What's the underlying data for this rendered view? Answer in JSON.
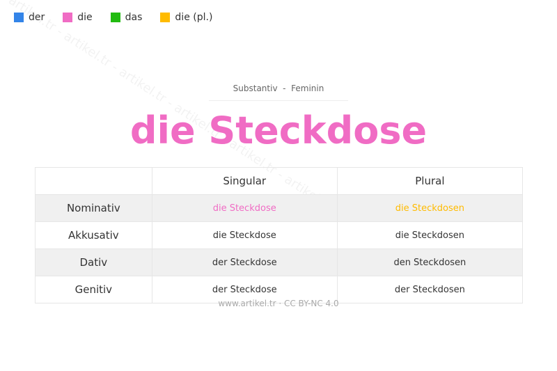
{
  "legend": [
    {
      "label": "der",
      "color": "#3384e8"
    },
    {
      "label": "die",
      "color": "#f06cc4"
    },
    {
      "label": "das",
      "color": "#22bb11"
    },
    {
      "label": "die (pl.)",
      "color": "#ffbb00"
    }
  ],
  "watermark": "artikel.tr - artikel.tr - artikel.tr - artikel.tr - artikel.tr - artikel.tr",
  "subtitle": "Substantiv  -  Feminin",
  "title": "die Steckdose",
  "title_color": "#f06cc4",
  "table": {
    "headers": [
      "",
      "Singular",
      "Plural"
    ],
    "rows": [
      {
        "case": "Nominativ",
        "singular": "die Steckdose",
        "plural": "die Steckdosen"
      },
      {
        "case": "Akkusativ",
        "singular": "die Steckdose",
        "plural": "die Steckdosen"
      },
      {
        "case": "Dativ",
        "singular": "der Steckdose",
        "plural": "den Steckdosen"
      },
      {
        "case": "Genitiv",
        "singular": "der Steckdose",
        "plural": "der Steckdosen"
      }
    ]
  },
  "footer": "www.artikel.tr · CC BY-NC 4.0"
}
